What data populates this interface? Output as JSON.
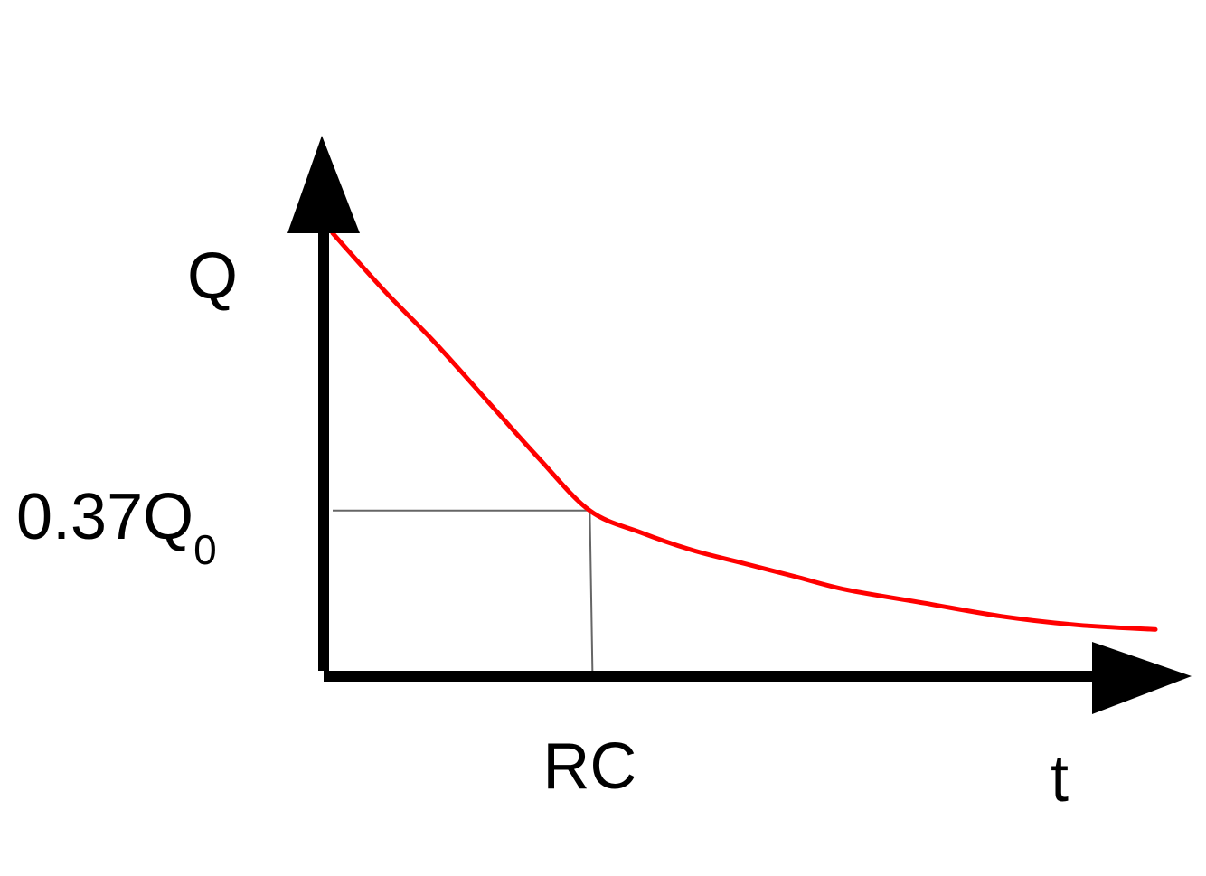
{
  "chart_data": {
    "type": "line",
    "title": "",
    "xlabel": "t",
    "ylabel": "Q",
    "x_tick_labels": [
      "RC"
    ],
    "y_tick_label": {
      "main": "0.37Q",
      "sub": "0"
    },
    "series": [
      {
        "x": [
          0,
          0.2,
          0.4,
          0.6,
          0.8,
          1.0,
          1.2,
          1.4,
          1.6,
          1.8,
          2.0,
          2.3,
          2.6,
          2.9,
          3.2
        ],
        "y": [
          1.0,
          0.87,
          0.75,
          0.62,
          0.49,
          0.37,
          0.32,
          0.28,
          0.25,
          0.22,
          0.19,
          0.16,
          0.13,
          0.11,
          0.1
        ]
      }
    ],
    "reference_point": {
      "x": 1.0,
      "y": 0.37
    },
    "xlim": [
      0,
      3.2
    ],
    "ylim": [
      0,
      1.0
    ],
    "grid": false,
    "colors": {
      "curve": "#ff0000",
      "axes": "#000000",
      "guide": "#666666"
    }
  }
}
